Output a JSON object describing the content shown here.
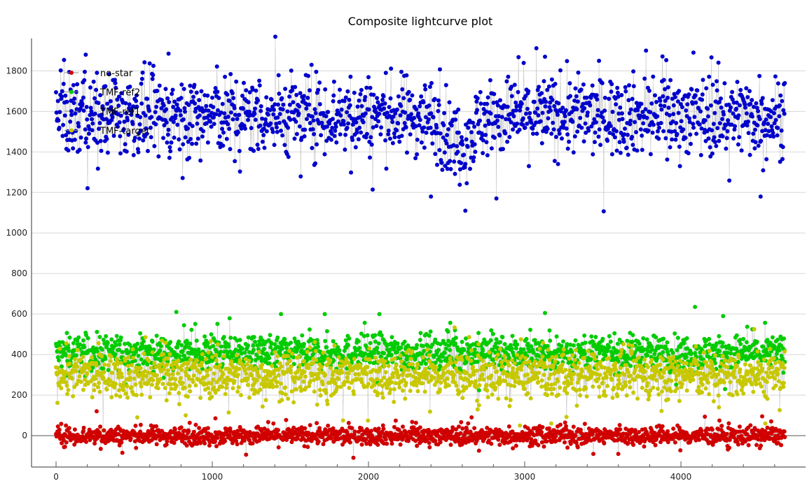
{
  "chart_data": {
    "type": "scatter",
    "title": "Composite lightcurve plot",
    "xlabel": "",
    "ylabel": "",
    "xlim": [
      -157,
      4798
    ],
    "ylim": [
      -155,
      1960
    ],
    "xticks": [
      0,
      1000,
      2000,
      3000,
      4000
    ],
    "yticks": [
      0,
      200,
      400,
      600,
      800,
      1000,
      1200,
      1400,
      1600,
      1800
    ],
    "grid": true,
    "legend_position": "top-left",
    "x_range_of_points": [
      0,
      4665
    ],
    "points_per_series": 1550,
    "connector_color": "#c8c8c8",
    "series": [
      {
        "name": "no-star",
        "color": "#d00000",
        "mean": 0,
        "spread": 22,
        "outliers": [
          [
            1020,
            85
          ],
          [
            2660,
            90
          ],
          [
            4520,
            95
          ],
          [
            260,
            120
          ]
        ]
      },
      {
        "name": "TMF-ref2",
        "color": "#00cc00",
        "mean": 410,
        "spread": 42,
        "outliers": [
          [
            770,
            610
          ],
          [
            1440,
            600
          ],
          [
            1720,
            600
          ],
          [
            2070,
            600
          ],
          [
            3130,
            605
          ],
          [
            4090,
            635
          ],
          [
            4270,
            590
          ]
        ]
      },
      {
        "name": "TMF-ref1",
        "color": "#0000cc",
        "mean": 1580,
        "spread": 95,
        "dip": {
          "center": 2580,
          "width": 120,
          "depth": 130
        },
        "outliers": [
          [
            2400,
            1180
          ],
          [
            2620,
            1110
          ],
          [
            4510,
            1180
          ],
          [
            4080,
            1890
          ],
          [
            720,
            1885
          ],
          [
            190,
            1880
          ],
          [
            3130,
            1870
          ]
        ]
      },
      {
        "name": "TMF-target",
        "color": "#c8c800",
        "mean": 300,
        "spread": 55,
        "outliers": [
          [
            520,
            90
          ],
          [
            1800,
            10
          ],
          [
            2970,
            50
          ],
          [
            3170,
            60
          ],
          [
            4540,
            60
          ],
          [
            830,
            100
          ]
        ]
      }
    ]
  }
}
